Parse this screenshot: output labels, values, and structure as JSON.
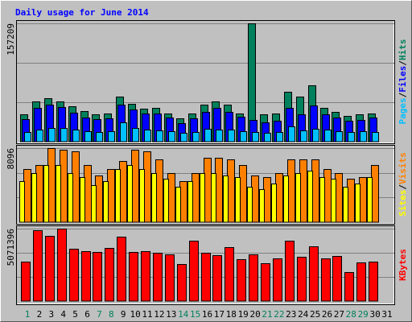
{
  "chart_data": [
    {
      "type": "bar",
      "title": "Daily usage for June 2014",
      "ylim": [
        0,
        157209
      ],
      "yticks": [
        157209
      ],
      "grid": true,
      "separator": "/",
      "series": [
        {
          "name": "Hits",
          "color": "#00805c",
          "values": [
            36350,
            53450,
            57730,
            53450,
            47040,
            40620,
            36350,
            37420,
            59870,
            50250,
            43830,
            44900,
            37420,
            31000,
            37420,
            49180,
            53450,
            49180,
            37420,
            157209,
            36350,
            37420,
            66280,
            59870,
            74830,
            44900,
            39550,
            34210,
            36350,
            37420,
            null
          ]
        },
        {
          "name": "Files",
          "color": "#0000ff",
          "values": [
            29930,
            44900,
            49180,
            45970,
            38480,
            32070,
            29930,
            31000,
            49180,
            42760,
            37420,
            37420,
            32070,
            24590,
            31000,
            39550,
            44900,
            39550,
            33140,
            28860,
            25660,
            27790,
            44900,
            36350,
            48110,
            36350,
            32070,
            27790,
            28860,
            32070,
            null
          ]
        },
        {
          "name": "Pages",
          "color": "#00c0ff",
          "values": [
            12830,
            16040,
            18170,
            18170,
            16040,
            13900,
            12830,
            13900,
            25660,
            18170,
            16040,
            14970,
            13900,
            11760,
            12830,
            17100,
            16040,
            16040,
            13900,
            12830,
            11760,
            12830,
            20310,
            14970,
            17100,
            16040,
            13900,
            12830,
            13900,
            12830,
            null
          ]
        }
      ]
    },
    {
      "type": "bar",
      "ylim": [
        0,
        8096
      ],
      "yticks": [
        8096
      ],
      "grid": true,
      "separator": "/",
      "series": [
        {
          "name": "Visits",
          "color": "#ff8000",
          "values": [
            5810,
            6250,
            8096,
            7920,
            7740,
            6250,
            5100,
            5810,
            6690,
            7920,
            7740,
            6860,
            5370,
            4490,
            5370,
            7040,
            7040,
            6860,
            6250,
            5100,
            4930,
            5370,
            6860,
            6860,
            6860,
            5810,
            5370,
            4750,
            4930,
            6250,
            null
          ]
        },
        {
          "name": "Sites",
          "color": "#ffff00",
          "values": [
            4490,
            5370,
            6250,
            6250,
            5370,
            4930,
            4050,
            4490,
            5810,
            6250,
            5810,
            5370,
            4750,
            3870,
            4490,
            5370,
            5370,
            5100,
            4930,
            3870,
            3610,
            4220,
            5100,
            5370,
            5630,
            4930,
            4750,
            3870,
            4220,
            4930,
            null
          ]
        }
      ]
    },
    {
      "type": "bar",
      "ylim": [
        0,
        5071396
      ],
      "yticks": [
        5071396
      ],
      "grid": true,
      "categories": [
        "1",
        "2",
        "3",
        "4",
        "5",
        "6",
        "7",
        "8",
        "9",
        "10",
        "11",
        "12",
        "13",
        "14",
        "15",
        "16",
        "17",
        "18",
        "19",
        "20",
        "21",
        "22",
        "23",
        "24",
        "25",
        "26",
        "27",
        "28",
        "29",
        "30",
        "31"
      ],
      "category_colors": [
        "#00805c",
        "#000000",
        "#000000",
        "#000000",
        "#000000",
        "#000000",
        "#00805c",
        "#00805c",
        "#000000",
        "#000000",
        "#000000",
        "#000000",
        "#000000",
        "#00805c",
        "#00805c",
        "#000000",
        "#000000",
        "#000000",
        "#000000",
        "#000000",
        "#00805c",
        "#00805c",
        "#000000",
        "#000000",
        "#000000",
        "#000000",
        "#000000",
        "#00805c",
        "#00805c",
        "#000000",
        "#000000"
      ],
      "series": [
        {
          "name": "KBytes",
          "color": "#ff0000",
          "values": [
            2735000,
            4957000,
            4558000,
            5071396,
            3647000,
            3476000,
            3419000,
            3704000,
            4501000,
            3419000,
            3476000,
            3362000,
            3248000,
            2564000,
            4217000,
            3362000,
            3191000,
            3761000,
            2906000,
            3248000,
            2621000,
            2963000,
            4217000,
            3077000,
            3818000,
            2963000,
            3134000,
            2051000,
            2678000,
            2735000,
            null
          ]
        }
      ]
    }
  ]
}
